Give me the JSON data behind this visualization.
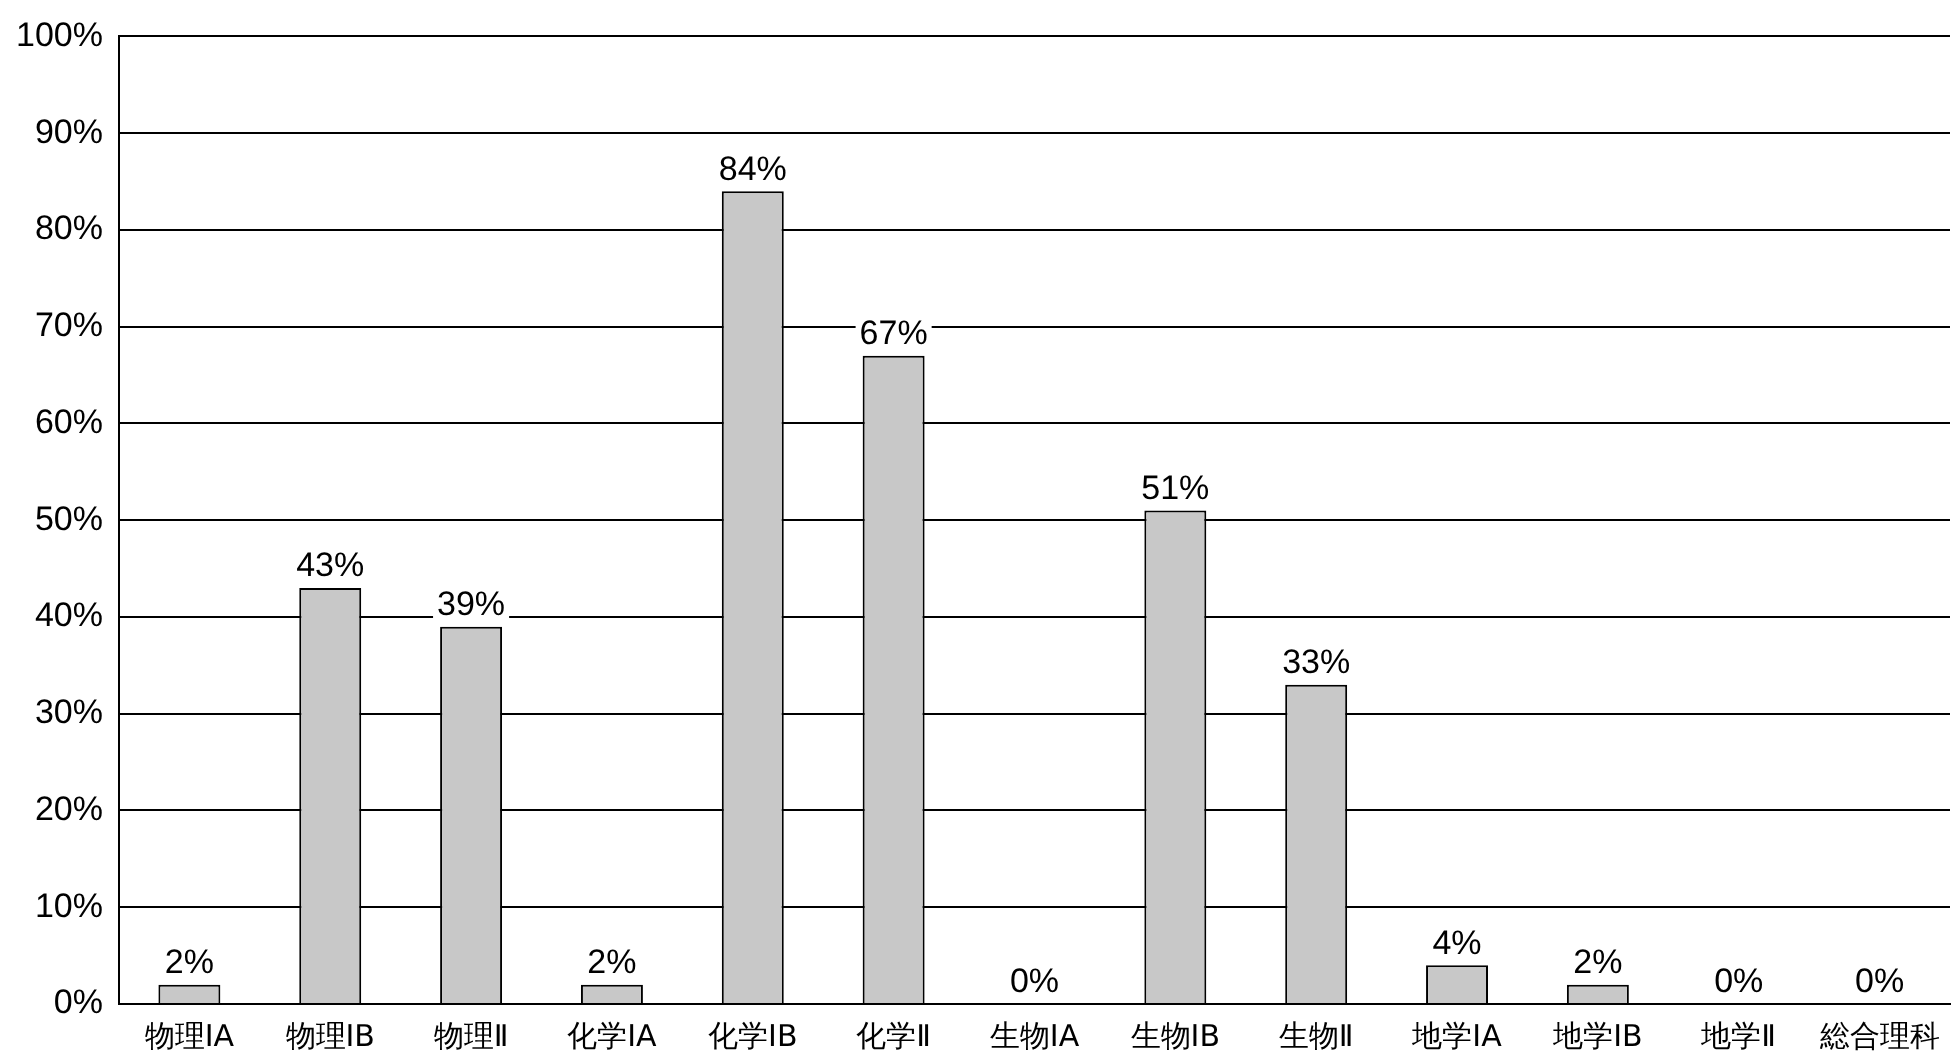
{
  "chart_data": {
    "type": "bar",
    "categories": [
      "物理ⅠA",
      "物理ⅠB",
      "物理Ⅱ",
      "化学ⅠA",
      "化学ⅠB",
      "化学Ⅱ",
      "生物ⅠA",
      "生物ⅠB",
      "生物Ⅱ",
      "地学ⅠA",
      "地学ⅠB",
      "地学Ⅱ",
      "総合理科"
    ],
    "values": [
      2,
      43,
      39,
      2,
      84,
      67,
      0,
      51,
      33,
      4,
      2,
      0,
      0
    ],
    "value_labels": [
      "2%",
      "43%",
      "39%",
      "2%",
      "84%",
      "67%",
      "0%",
      "51%",
      "33%",
      "4%",
      "2%",
      "0%",
      "0%"
    ],
    "color": "#c8c8c8",
    "ylim": [
      0,
      100
    ],
    "yticks": [
      {
        "value": 0,
        "label": "0%"
      },
      {
        "value": 10,
        "label": "10%"
      },
      {
        "value": 20,
        "label": "20%"
      },
      {
        "value": 30,
        "label": "30%"
      },
      {
        "value": 40,
        "label": "40%"
      },
      {
        "value": 50,
        "label": "50%"
      },
      {
        "value": 60,
        "label": "60%"
      },
      {
        "value": 70,
        "label": "70%"
      },
      {
        "value": 80,
        "label": "80%"
      },
      {
        "value": 90,
        "label": "90%"
      },
      {
        "value": 100,
        "label": "100%"
      }
    ],
    "grid": "y",
    "legend": false
  }
}
